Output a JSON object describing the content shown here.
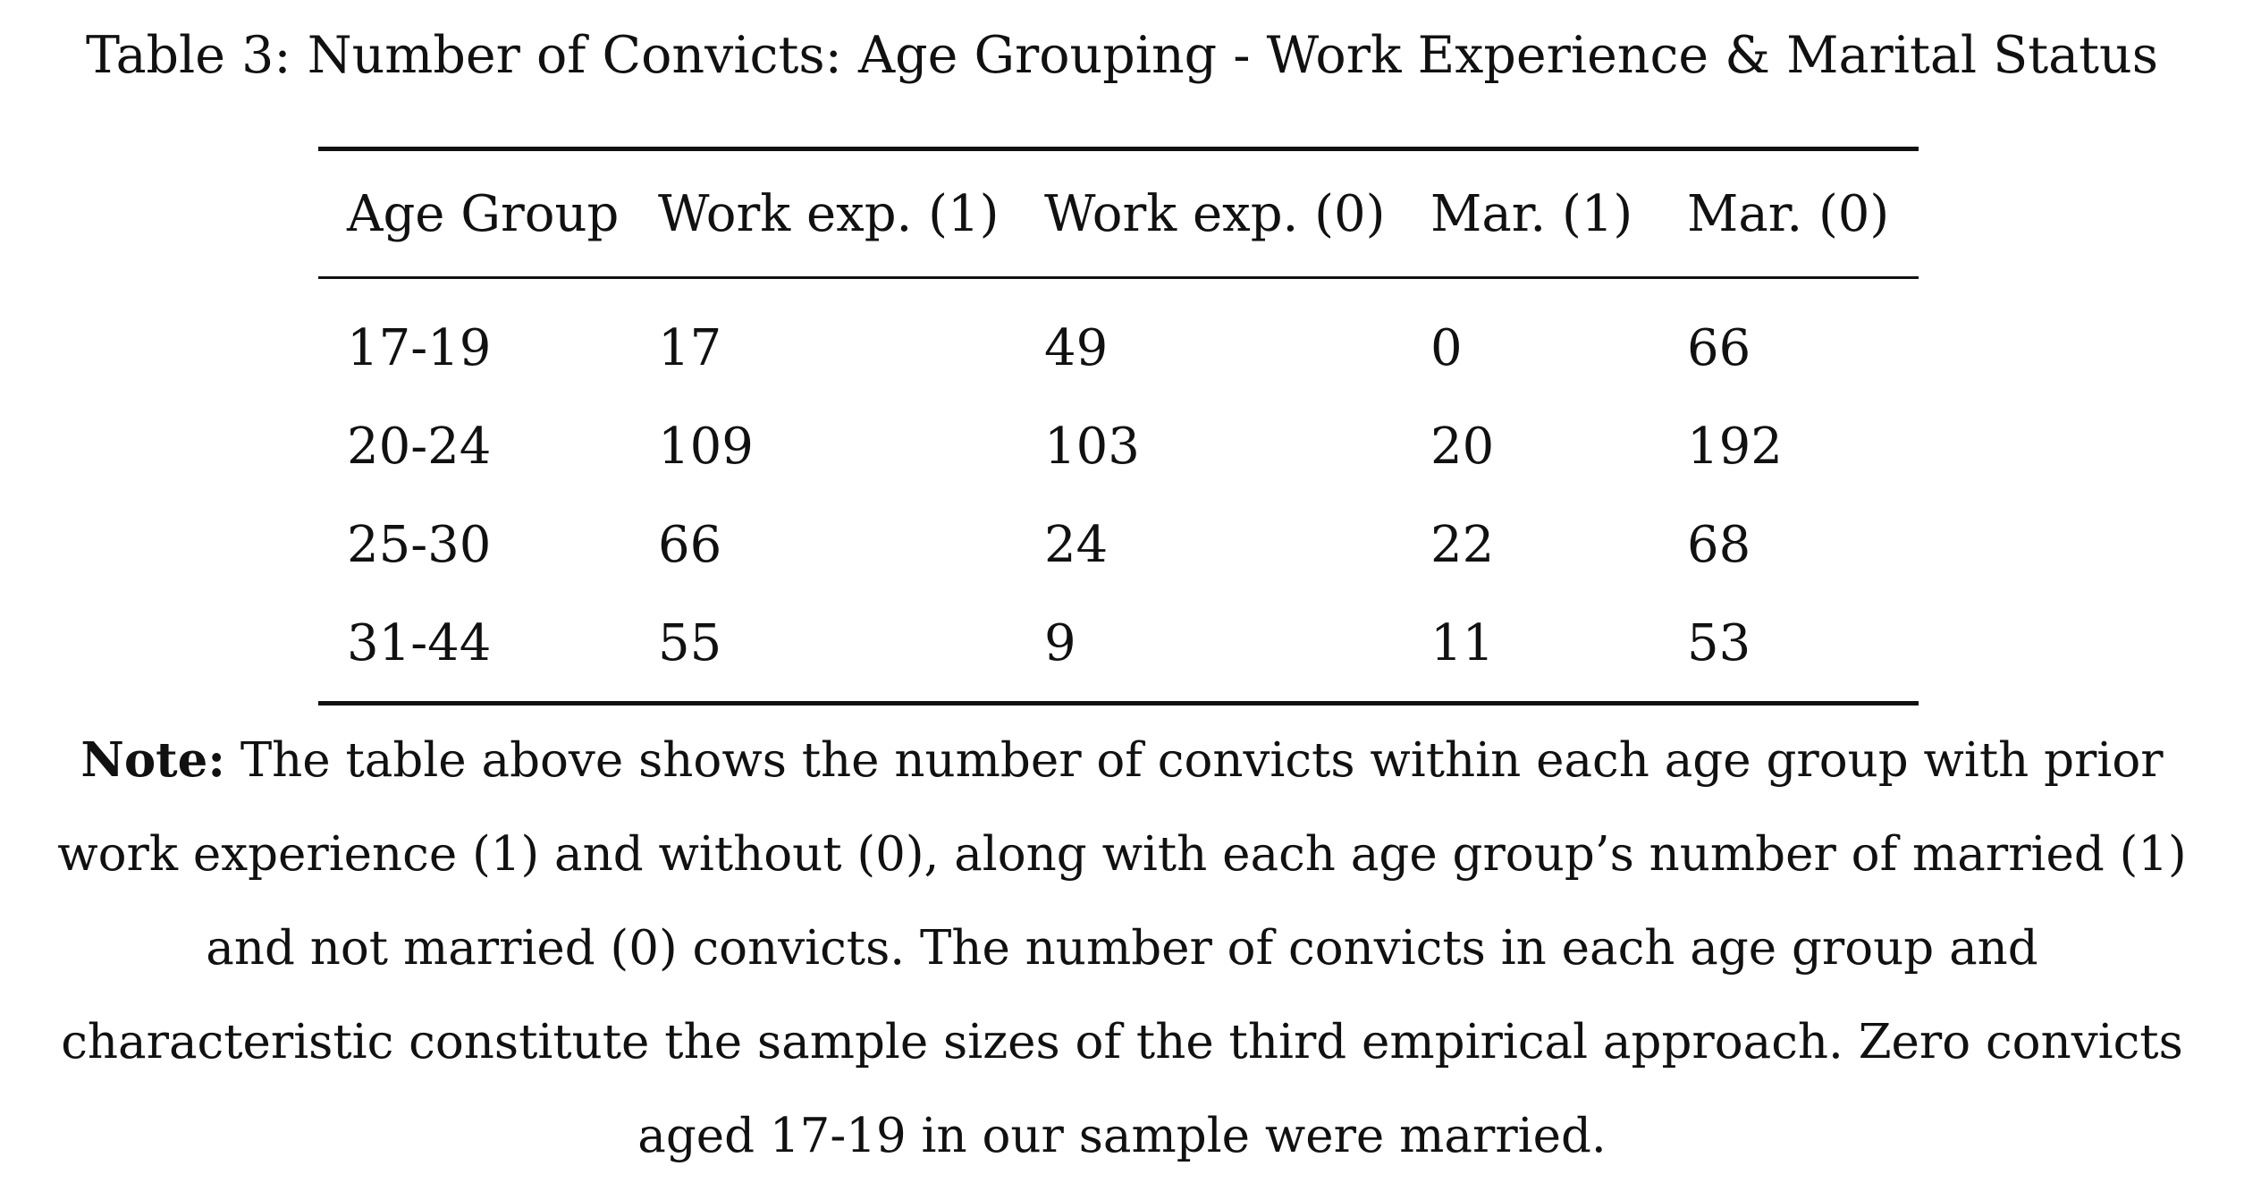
{
  "caption": "Table 3: Number of Convicts: Age Grouping - Work Experience & Marital Status",
  "table": {
    "headers": [
      "Age Group",
      "Work exp. (1)",
      "Work exp. (0)",
      "Mar. (1)",
      "Mar. (0)"
    ],
    "rows": [
      [
        "17-19",
        "17",
        "49",
        "0",
        "66"
      ],
      [
        "20-24",
        "109",
        "103",
        "20",
        "192"
      ],
      [
        "25-30",
        "66",
        "24",
        "22",
        "68"
      ],
      [
        "31-44",
        "55",
        "9",
        "11",
        "53"
      ]
    ]
  },
  "note": {
    "label": "Note:",
    "text": "The table above shows the number of convicts within each age group with prior work experience (1) and without (0), along with each age group’s number of married (1) and not married (0) convicts. The number of convicts in each age group and characteristic constitute the sample sizes of the third empirical approach. Zero convicts aged 17-19 in our sample were married."
  }
}
